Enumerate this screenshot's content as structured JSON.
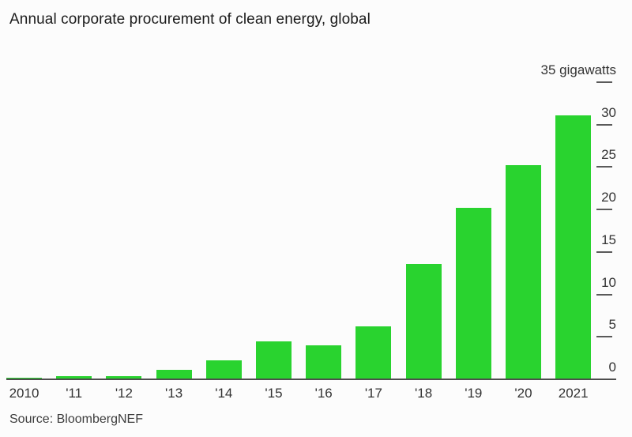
{
  "title": "Annual corporate procurement of clean energy, global",
  "source": "Source: BloombergNEF",
  "colors": {
    "bar": "#29d32f",
    "axis_line": "#4d4d4d",
    "tick_dash": "#5a5a5a",
    "title_text": "#1c1c1c",
    "axis_text": "#333333",
    "background": "#fcfcfc"
  },
  "chart_data": {
    "type": "bar",
    "title": "Annual corporate procurement of clean energy, global",
    "categories": [
      "2010",
      "'11",
      "'12",
      "'13",
      "'14",
      "'15",
      "'16",
      "'17",
      "'18",
      "'19",
      "'20",
      "2021"
    ],
    "values": [
      0.15,
      0.4,
      0.4,
      1.1,
      2.2,
      4.5,
      4.0,
      6.2,
      13.6,
      20.2,
      25.2,
      31.1
    ],
    "xlabel": "",
    "ylabel": "gigawatts",
    "ylim": [
      0,
      35
    ],
    "yticks": [
      0,
      5,
      10,
      15,
      20,
      25,
      30,
      35
    ],
    "ytick_top_label": "35 gigawatts",
    "grid": false,
    "legend": false,
    "source": "Source: BloombergNEF"
  }
}
